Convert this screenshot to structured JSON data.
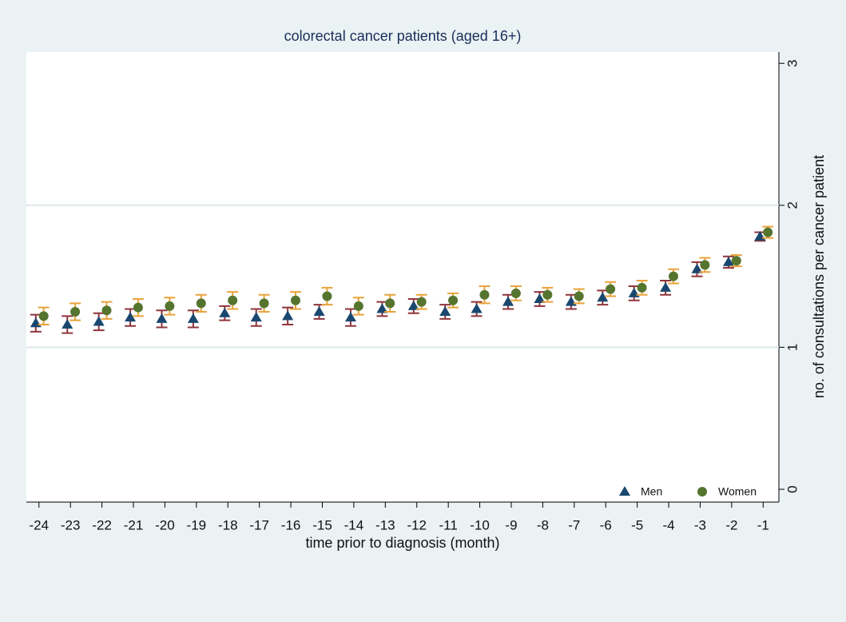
{
  "chart_data": {
    "type": "errorbar-scatter",
    "title": "colorectal cancer patients (aged 16+)",
    "x_label": "time prior to diagnosis (month)",
    "y_label": "no. of consultations per cancer patient",
    "x": [
      -24,
      -23,
      -22,
      -21,
      -20,
      -19,
      -18,
      -17,
      -16,
      -15,
      -14,
      -13,
      -12,
      -11,
      -10,
      -9,
      -8,
      -7,
      -6,
      -5,
      -4,
      -3,
      -2,
      -1
    ],
    "xlim": [
      -24.4,
      -0.5
    ],
    "xticks": [
      -24,
      -23,
      -22,
      -21,
      -20,
      -19,
      -18,
      -17,
      -16,
      -15,
      -14,
      -13,
      -12,
      -11,
      -10,
      -9,
      -8,
      -7,
      -6,
      -5,
      -4,
      -3,
      -2,
      -1
    ],
    "ylim": [
      -0.09,
      3.08
    ],
    "yticks": [
      0,
      1,
      2,
      3
    ],
    "grid": true,
    "legend": "bottom-right",
    "series": [
      {
        "name": "Men",
        "color": "#1a476f",
        "error_color": "#90353b",
        "marker": "triangle",
        "values": [
          1.17,
          1.16,
          1.18,
          1.21,
          1.2,
          1.2,
          1.24,
          1.21,
          1.22,
          1.25,
          1.21,
          1.27,
          1.29,
          1.25,
          1.27,
          1.32,
          1.34,
          1.32,
          1.35,
          1.38,
          1.42,
          1.55,
          1.6,
          1.78
        ],
        "errors": [
          0.06,
          0.06,
          0.06,
          0.06,
          0.06,
          0.06,
          0.05,
          0.06,
          0.06,
          0.05,
          0.06,
          0.05,
          0.05,
          0.05,
          0.05,
          0.05,
          0.05,
          0.05,
          0.05,
          0.05,
          0.05,
          0.05,
          0.04,
          0.03
        ]
      },
      {
        "name": "Women",
        "color": "#55752f",
        "error_color": "#e8a33a",
        "marker": "circle",
        "values": [
          1.22,
          1.25,
          1.26,
          1.28,
          1.29,
          1.31,
          1.33,
          1.31,
          1.33,
          1.36,
          1.29,
          1.31,
          1.32,
          1.33,
          1.37,
          1.38,
          1.37,
          1.36,
          1.41,
          1.42,
          1.5,
          1.58,
          1.61,
          1.81
        ],
        "errors": [
          0.06,
          0.06,
          0.06,
          0.06,
          0.06,
          0.06,
          0.06,
          0.06,
          0.06,
          0.06,
          0.06,
          0.06,
          0.05,
          0.05,
          0.06,
          0.05,
          0.05,
          0.05,
          0.05,
          0.05,
          0.05,
          0.05,
          0.04,
          0.04
        ]
      }
    ]
  }
}
